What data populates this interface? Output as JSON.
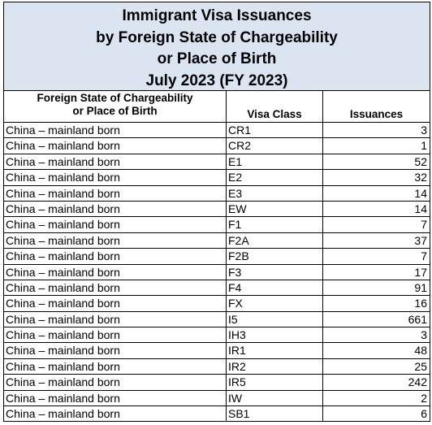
{
  "title": [
    "Immigrant Visa Issuances",
    "by Foreign State of Chargeability",
    "or Place of Birth",
    "July 2023 (FY 2023)"
  ],
  "table": {
    "headers": [
      [
        "Foreign State of Chargeability",
        "or Place of Birth"
      ],
      [
        "Visa Class"
      ],
      [
        "Issuances"
      ]
    ],
    "rows": [
      [
        "China – mainland born",
        "CR1",
        3
      ],
      [
        "China – mainland born",
        "CR2",
        1
      ],
      [
        "China – mainland born",
        "E1",
        52
      ],
      [
        "China – mainland born",
        "E2",
        32
      ],
      [
        "China – mainland born",
        "E3",
        14
      ],
      [
        "China – mainland born",
        "EW",
        14
      ],
      [
        "China – mainland born",
        "F1",
        7
      ],
      [
        "China – mainland born",
        "F2A",
        37
      ],
      [
        "China – mainland born",
        "F2B",
        7
      ],
      [
        "China – mainland born",
        "F3",
        17
      ],
      [
        "China – mainland born",
        "F4",
        91
      ],
      [
        "China – mainland born",
        "FX",
        16
      ],
      [
        "China – mainland born",
        "I5",
        661
      ],
      [
        "China – mainland born",
        "IH3",
        3
      ],
      [
        "China – mainland born",
        "IR1",
        48
      ],
      [
        "China – mainland born",
        "IR2",
        25
      ],
      [
        "China – mainland born",
        "IR5",
        242
      ],
      [
        "China – mainland born",
        "IW",
        2
      ],
      [
        "China – mainland born",
        "SB1",
        6
      ]
    ]
  }
}
